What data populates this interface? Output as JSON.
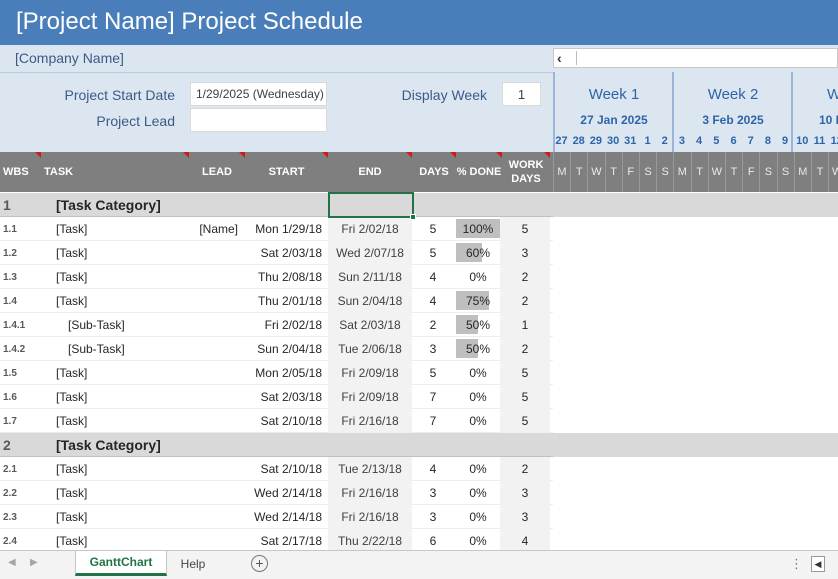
{
  "title": "[Project Name] Project Schedule",
  "company": "[Company Name]",
  "fields": {
    "start_date_label": "Project Start Date",
    "start_date_value": "1/29/2025 (Wednesday)",
    "lead_label": "Project Lead",
    "lead_value": "",
    "display_week_label": "Display Week",
    "display_week_value": "1"
  },
  "weeks": [
    {
      "label": "Week 1",
      "date": "27 Jan 2025"
    },
    {
      "label": "Week 2",
      "date": "3 Feb 2025"
    },
    {
      "label": "W",
      "date": "10 F"
    }
  ],
  "day_numbers": [
    "27",
    "28",
    "29",
    "30",
    "31",
    "1",
    "2",
    "3",
    "4",
    "5",
    "6",
    "7",
    "8",
    "9",
    "10",
    "11",
    "12"
  ],
  "day_letters": [
    "M",
    "T",
    "W",
    "T",
    "F",
    "S",
    "S",
    "M",
    "T",
    "W",
    "T",
    "F",
    "S",
    "S",
    "M",
    "T",
    "W"
  ],
  "columns": {
    "wbs": "WBS",
    "task": "TASK",
    "lead": "LEAD",
    "start": "START",
    "end": "END",
    "days": "DAYS",
    "done": "% DONE",
    "work_days_1": "WORK",
    "work_days_2": "DAYS"
  },
  "rows": [
    {
      "type": "category",
      "wbs": "1",
      "task": "[Task Category]"
    },
    {
      "type": "task",
      "wbs": "1.1",
      "task": "[Task]",
      "lead": "[Name]",
      "start": "Mon 1/29/18",
      "end": "Fri 2/02/18",
      "days": "5",
      "done": "100%",
      "done_frac": 1.0,
      "work": "5"
    },
    {
      "type": "task",
      "wbs": "1.2",
      "task": "[Task]",
      "lead": "",
      "start": "Sat 2/03/18",
      "end": "Wed 2/07/18",
      "days": "5",
      "done": "60%",
      "done_frac": 0.6,
      "work": "3"
    },
    {
      "type": "task",
      "wbs": "1.3",
      "task": "[Task]",
      "lead": "",
      "start": "Thu 2/08/18",
      "end": "Sun 2/11/18",
      "days": "4",
      "done": "0%",
      "done_frac": 0,
      "work": "2"
    },
    {
      "type": "task",
      "wbs": "1.4",
      "task": "[Task]",
      "lead": "",
      "start": "Thu 2/01/18",
      "end": "Sun 2/04/18",
      "days": "4",
      "done": "75%",
      "done_frac": 0.75,
      "work": "2"
    },
    {
      "type": "subtask",
      "wbs": "1.4.1",
      "task": "[Sub-Task]",
      "lead": "",
      "start": "Fri 2/02/18",
      "end": "Sat 2/03/18",
      "days": "2",
      "done": "50%",
      "done_frac": 0.5,
      "work": "1"
    },
    {
      "type": "subtask",
      "wbs": "1.4.2",
      "task": "[Sub-Task]",
      "lead": "",
      "start": "Sun 2/04/18",
      "end": "Tue 2/06/18",
      "days": "3",
      "done": "50%",
      "done_frac": 0.5,
      "work": "2"
    },
    {
      "type": "task",
      "wbs": "1.5",
      "task": "[Task]",
      "lead": "",
      "start": "Mon 2/05/18",
      "end": "Fri 2/09/18",
      "days": "5",
      "done": "0%",
      "done_frac": 0,
      "work": "5"
    },
    {
      "type": "task",
      "wbs": "1.6",
      "task": "[Task]",
      "lead": "",
      "start": "Sat 2/03/18",
      "end": "Fri 2/09/18",
      "days": "7",
      "done": "0%",
      "done_frac": 0,
      "work": "5"
    },
    {
      "type": "task",
      "wbs": "1.7",
      "task": "[Task]",
      "lead": "",
      "start": "Sat 2/10/18",
      "end": "Fri 2/16/18",
      "days": "7",
      "done": "0%",
      "done_frac": 0,
      "work": "5"
    },
    {
      "type": "category",
      "wbs": "2",
      "task": "[Task Category]"
    },
    {
      "type": "task",
      "wbs": "2.1",
      "task": "[Task]",
      "lead": "",
      "start": "Sat 2/10/18",
      "end": "Tue 2/13/18",
      "days": "4",
      "done": "0%",
      "done_frac": 0,
      "work": "2"
    },
    {
      "type": "task",
      "wbs": "2.2",
      "task": "[Task]",
      "lead": "",
      "start": "Wed 2/14/18",
      "end": "Fri 2/16/18",
      "days": "3",
      "done": "0%",
      "done_frac": 0,
      "work": "3"
    },
    {
      "type": "task",
      "wbs": "2.3",
      "task": "[Task]",
      "lead": "",
      "start": "Wed 2/14/18",
      "end": "Fri 2/16/18",
      "days": "3",
      "done": "0%",
      "done_frac": 0,
      "work": "3"
    },
    {
      "type": "task",
      "wbs": "2.4",
      "task": "[Task]",
      "lead": "",
      "start": "Sat 2/17/18",
      "end": "Thu 2/22/18",
      "days": "6",
      "done": "0%",
      "done_frac": 0,
      "work": "4"
    }
  ],
  "sheet_tabs": [
    {
      "label": "GanttChart",
      "active": true
    },
    {
      "label": "Help",
      "active": false
    }
  ],
  "colors": {
    "title_bar": "#4a7ebb",
    "info_band": "#dce6f1",
    "header_row": "#7f7f7f",
    "category_row": "#d9d9d9",
    "progress_bar": "#bfbfbf",
    "active_tab": "#217346"
  },
  "icons": {
    "scroll_left": "chevron-left-icon",
    "add_sheet": "plus-circle-icon",
    "more": "kebab-icon"
  }
}
